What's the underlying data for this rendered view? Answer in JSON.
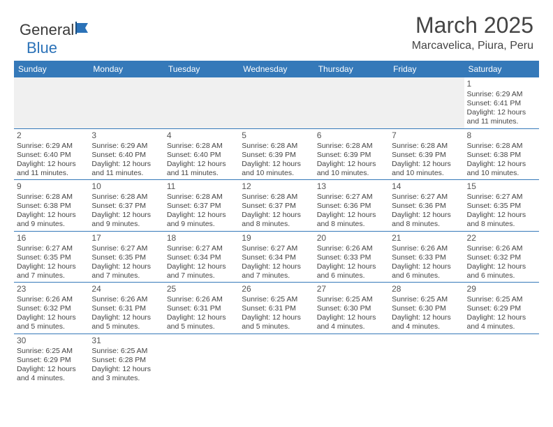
{
  "logo": {
    "text1": "General",
    "text2": "Blue"
  },
  "title": "March 2025",
  "location": "Marcavelica, Piura, Peru",
  "colors": {
    "header_bg": "#3579b9",
    "header_fg": "#ffffff",
    "rule": "#3579b9",
    "empty_bg": "#f0f0f0",
    "text": "#444444"
  },
  "weekdays": [
    "Sunday",
    "Monday",
    "Tuesday",
    "Wednesday",
    "Thursday",
    "Friday",
    "Saturday"
  ],
  "weeks": [
    [
      null,
      null,
      null,
      null,
      null,
      null,
      {
        "n": "1",
        "sunrise": "6:29 AM",
        "sunset": "6:41 PM",
        "daylight": "12 hours and 11 minutes."
      }
    ],
    [
      {
        "n": "2",
        "sunrise": "6:29 AM",
        "sunset": "6:40 PM",
        "daylight": "12 hours and 11 minutes."
      },
      {
        "n": "3",
        "sunrise": "6:29 AM",
        "sunset": "6:40 PM",
        "daylight": "12 hours and 11 minutes."
      },
      {
        "n": "4",
        "sunrise": "6:28 AM",
        "sunset": "6:40 PM",
        "daylight": "12 hours and 11 minutes."
      },
      {
        "n": "5",
        "sunrise": "6:28 AM",
        "sunset": "6:39 PM",
        "daylight": "12 hours and 10 minutes."
      },
      {
        "n": "6",
        "sunrise": "6:28 AM",
        "sunset": "6:39 PM",
        "daylight": "12 hours and 10 minutes."
      },
      {
        "n": "7",
        "sunrise": "6:28 AM",
        "sunset": "6:39 PM",
        "daylight": "12 hours and 10 minutes."
      },
      {
        "n": "8",
        "sunrise": "6:28 AM",
        "sunset": "6:38 PM",
        "daylight": "12 hours and 10 minutes."
      }
    ],
    [
      {
        "n": "9",
        "sunrise": "6:28 AM",
        "sunset": "6:38 PM",
        "daylight": "12 hours and 9 minutes."
      },
      {
        "n": "10",
        "sunrise": "6:28 AM",
        "sunset": "6:37 PM",
        "daylight": "12 hours and 9 minutes."
      },
      {
        "n": "11",
        "sunrise": "6:28 AM",
        "sunset": "6:37 PM",
        "daylight": "12 hours and 9 minutes."
      },
      {
        "n": "12",
        "sunrise": "6:28 AM",
        "sunset": "6:37 PM",
        "daylight": "12 hours and 8 minutes."
      },
      {
        "n": "13",
        "sunrise": "6:27 AM",
        "sunset": "6:36 PM",
        "daylight": "12 hours and 8 minutes."
      },
      {
        "n": "14",
        "sunrise": "6:27 AM",
        "sunset": "6:36 PM",
        "daylight": "12 hours and 8 minutes."
      },
      {
        "n": "15",
        "sunrise": "6:27 AM",
        "sunset": "6:35 PM",
        "daylight": "12 hours and 8 minutes."
      }
    ],
    [
      {
        "n": "16",
        "sunrise": "6:27 AM",
        "sunset": "6:35 PM",
        "daylight": "12 hours and 7 minutes."
      },
      {
        "n": "17",
        "sunrise": "6:27 AM",
        "sunset": "6:35 PM",
        "daylight": "12 hours and 7 minutes."
      },
      {
        "n": "18",
        "sunrise": "6:27 AM",
        "sunset": "6:34 PM",
        "daylight": "12 hours and 7 minutes."
      },
      {
        "n": "19",
        "sunrise": "6:27 AM",
        "sunset": "6:34 PM",
        "daylight": "12 hours and 7 minutes."
      },
      {
        "n": "20",
        "sunrise": "6:26 AM",
        "sunset": "6:33 PM",
        "daylight": "12 hours and 6 minutes."
      },
      {
        "n": "21",
        "sunrise": "6:26 AM",
        "sunset": "6:33 PM",
        "daylight": "12 hours and 6 minutes."
      },
      {
        "n": "22",
        "sunrise": "6:26 AM",
        "sunset": "6:32 PM",
        "daylight": "12 hours and 6 minutes."
      }
    ],
    [
      {
        "n": "23",
        "sunrise": "6:26 AM",
        "sunset": "6:32 PM",
        "daylight": "12 hours and 5 minutes."
      },
      {
        "n": "24",
        "sunrise": "6:26 AM",
        "sunset": "6:31 PM",
        "daylight": "12 hours and 5 minutes."
      },
      {
        "n": "25",
        "sunrise": "6:26 AM",
        "sunset": "6:31 PM",
        "daylight": "12 hours and 5 minutes."
      },
      {
        "n": "26",
        "sunrise": "6:25 AM",
        "sunset": "6:31 PM",
        "daylight": "12 hours and 5 minutes."
      },
      {
        "n": "27",
        "sunrise": "6:25 AM",
        "sunset": "6:30 PM",
        "daylight": "12 hours and 4 minutes."
      },
      {
        "n": "28",
        "sunrise": "6:25 AM",
        "sunset": "6:30 PM",
        "daylight": "12 hours and 4 minutes."
      },
      {
        "n": "29",
        "sunrise": "6:25 AM",
        "sunset": "6:29 PM",
        "daylight": "12 hours and 4 minutes."
      }
    ],
    [
      {
        "n": "30",
        "sunrise": "6:25 AM",
        "sunset": "6:29 PM",
        "daylight": "12 hours and 4 minutes."
      },
      {
        "n": "31",
        "sunrise": "6:25 AM",
        "sunset": "6:28 PM",
        "daylight": "12 hours and 3 minutes."
      },
      null,
      null,
      null,
      null,
      null
    ]
  ],
  "labels": {
    "sunrise": "Sunrise:",
    "sunset": "Sunset:",
    "daylight": "Daylight:"
  }
}
